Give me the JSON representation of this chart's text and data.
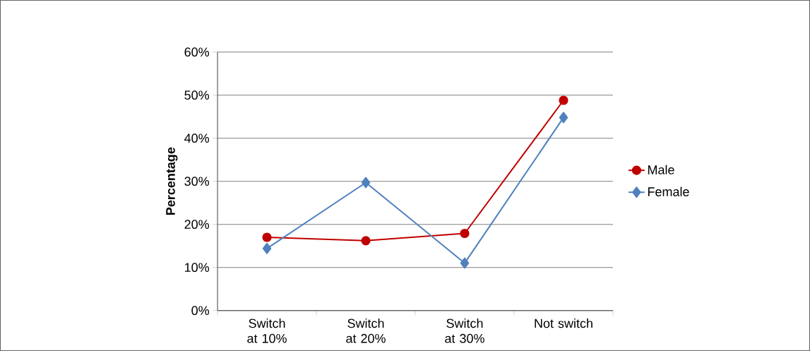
{
  "chart_data": {
    "type": "line",
    "ylabel": "Percentage",
    "categories": [
      "Switch at 10%",
      "Switch at 20%",
      "Switch at 30%",
      "Not switch"
    ],
    "series": [
      {
        "name": "Male",
        "color": "#c00000",
        "marker": "circle",
        "values": [
          17.0,
          16.2,
          17.9,
          48.8
        ]
      },
      {
        "name": "Female",
        "color": "#4f81bd",
        "marker": "diamond",
        "values": [
          14.4,
          29.7,
          11.0,
          44.8
        ]
      }
    ],
    "ylim": [
      0,
      60
    ],
    "yticks": [
      {
        "value": 0,
        "label": "0%"
      },
      {
        "value": 10,
        "label": "10%"
      },
      {
        "value": 20,
        "label": "20%"
      },
      {
        "value": 30,
        "label": "30%"
      },
      {
        "value": 40,
        "label": "40%"
      },
      {
        "value": 50,
        "label": "50%"
      },
      {
        "value": 60,
        "label": "60%"
      }
    ],
    "grid": "y",
    "legend": "right",
    "line_style": "solid"
  }
}
